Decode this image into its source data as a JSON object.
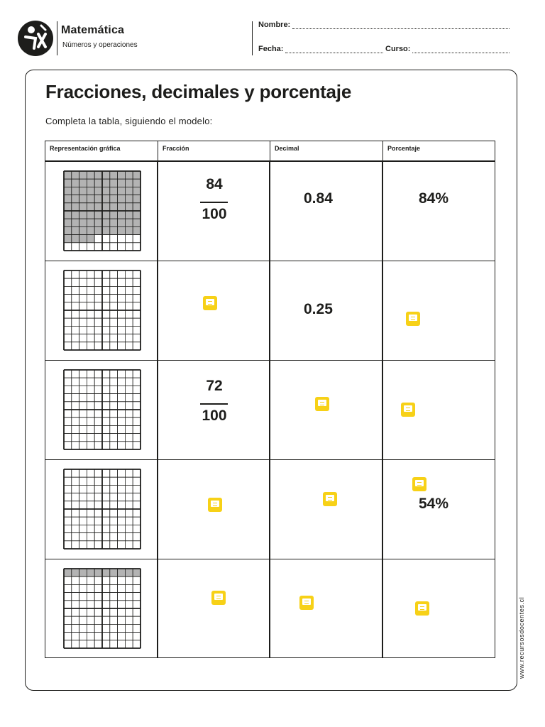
{
  "header": {
    "subject": "Matemática",
    "subtitle": "Números y operaciones",
    "name_label": "Nombre:",
    "date_label": "Fecha:",
    "course_label": "Curso:"
  },
  "title": "Fracciones, decimales y porcentaje",
  "instruction": "Completa la tabla, siguiendo el modelo:",
  "table": {
    "headers": [
      "Representación gráfica",
      "Fracción",
      "Decimal",
      "Porcentaje"
    ],
    "rows": [
      {
        "shaded": 84,
        "numerator": "84",
        "denominator": "100",
        "decimal": "0.84",
        "percent": "84%"
      },
      {
        "shaded": 0,
        "numerator": "",
        "denominator": "",
        "decimal": "0.25",
        "percent": ""
      },
      {
        "shaded": 0,
        "numerator": "72",
        "denominator": "100",
        "decimal": "",
        "percent": ""
      },
      {
        "shaded": 0,
        "numerator": "",
        "denominator": "",
        "decimal": "",
        "percent": "54%"
      },
      {
        "shaded": 10,
        "numerator": "",
        "denominator": "",
        "decimal": "",
        "percent": ""
      }
    ]
  },
  "website": "www.recursosdocentes.cl",
  "colors": {
    "shade": "#b3b3b3",
    "note": "#f7d117",
    "ink": "#1d1d1b"
  }
}
